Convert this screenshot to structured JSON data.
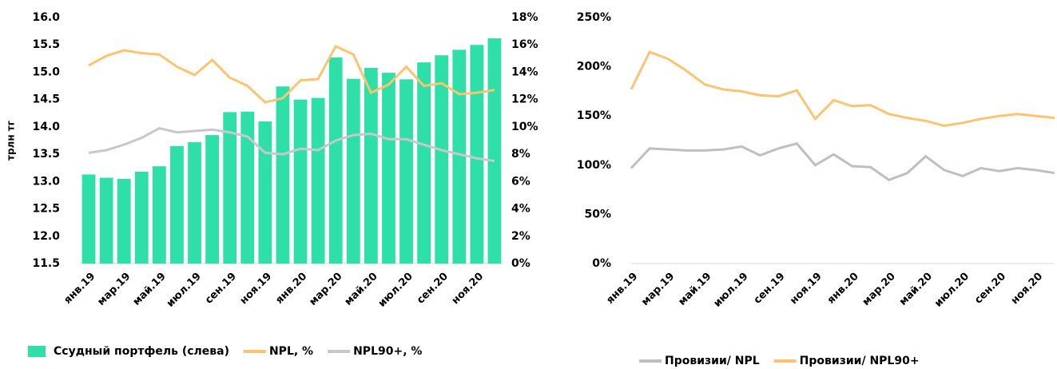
{
  "chart_data": [
    {
      "type": "bar",
      "ylabel": "трлн тг",
      "categories": [
        "янв.19",
        null,
        "мар.19",
        null,
        "май.19",
        null,
        "июл.19",
        null,
        "сен.19",
        null,
        "ноя.19",
        null,
        "янв.20",
        null,
        "мар.20",
        null,
        "май.20",
        null,
        "июл.20",
        null,
        "сен.20",
        null,
        "ноя.20",
        null
      ],
      "series": [
        {
          "name": "Ссудный портфель (слева)",
          "type": "bar",
          "color": "#2edfa8",
          "values": [
            13.13,
            13.07,
            13.05,
            13.18,
            13.28,
            13.65,
            13.72,
            13.85,
            14.27,
            14.28,
            14.1,
            14.74,
            14.5,
            14.53,
            15.27,
            14.88,
            15.08,
            14.99,
            14.87,
            15.18,
            15.31,
            15.41,
            15.5,
            15.62
          ]
        },
        {
          "name": "NPL, %",
          "type": "line",
          "axis": "y2",
          "color": "#fcc470",
          "values": [
            14.5,
            15.2,
            15.6,
            15.4,
            15.3,
            14.4,
            13.8,
            14.9,
            13.6,
            13.0,
            11.8,
            12.1,
            13.4,
            13.5,
            15.9,
            15.3,
            12.5,
            13.1,
            14.4,
            13.0,
            13.2,
            12.4,
            12.5,
            12.7
          ]
        },
        {
          "name": "NPL90+, %",
          "type": "line",
          "axis": "y2",
          "color": "#c8c8c8",
          "values": [
            8.1,
            8.3,
            8.7,
            9.2,
            9.9,
            9.6,
            9.7,
            9.8,
            9.6,
            9.3,
            8.1,
            8.0,
            8.4,
            8.3,
            9.0,
            9.4,
            9.5,
            9.1,
            9.1,
            8.7,
            8.3,
            8.0,
            7.7,
            7.5
          ]
        }
      ],
      "ylim": [
        11.5,
        16.0
      ],
      "yticks": [
        {
          "value": 11.5,
          "label": "11.5"
        },
        {
          "value": 12,
          "label": "12.0"
        },
        {
          "value": 12.5,
          "label": "12.5"
        },
        {
          "value": 13,
          "label": "13.0"
        },
        {
          "value": 13.5,
          "label": "13.5"
        },
        {
          "value": 14,
          "label": "14.0"
        },
        {
          "value": 14.5,
          "label": "14.5"
        },
        {
          "value": 15,
          "label": "15.0"
        },
        {
          "value": 15.5,
          "label": "15.5"
        },
        {
          "value": 16,
          "label": "16.0"
        }
      ],
      "y2lim": [
        0,
        18
      ],
      "y2ticks": [
        {
          "value": 0,
          "label": "0%"
        },
        {
          "value": 2,
          "label": "2%"
        },
        {
          "value": 4,
          "label": "4%"
        },
        {
          "value": 6,
          "label": "6%"
        },
        {
          "value": 8,
          "label": "8%"
        },
        {
          "value": 10,
          "label": "10%"
        },
        {
          "value": 12,
          "label": "12%"
        },
        {
          "value": 14,
          "label": "14%"
        },
        {
          "value": 16,
          "label": "16%"
        },
        {
          "value": 18,
          "label": "18%"
        }
      ]
    },
    {
      "type": "line",
      "categories": [
        "янв.19",
        null,
        "мар.19",
        null,
        "май.19",
        null,
        "июл.19",
        null,
        "сен.19",
        null,
        "ноя.19",
        null,
        "янв.20",
        null,
        "мар.20",
        null,
        "май.20",
        null,
        "июл.20",
        null,
        "сен.20",
        null,
        "ноя.20",
        null
      ],
      "series": [
        {
          "name": "Провизии/ NPL",
          "color": "#bfbfbf",
          "values": [
            97,
            117,
            116,
            115,
            115,
            116,
            119,
            110,
            117,
            122,
            100,
            111,
            99,
            98,
            85,
            92,
            109,
            95,
            89,
            97,
            94,
            97,
            95,
            92
          ]
        },
        {
          "name": "Провизии/ NPL90+",
          "color": "#fcc470",
          "values": [
            177,
            215,
            208,
            196,
            182,
            177,
            175,
            171,
            170,
            176,
            147,
            166,
            160,
            161,
            152,
            148,
            145,
            140,
            143,
            147,
            150,
            152,
            150,
            148
          ]
        }
      ],
      "ylim": [
        0,
        250
      ],
      "yticks": [
        {
          "value": 0,
          "label": "0%"
        },
        {
          "value": 50,
          "label": "50%"
        },
        {
          "value": 100,
          "label": "100%"
        },
        {
          "value": 150,
          "label": "150%"
        },
        {
          "value": 200,
          "label": "200%"
        },
        {
          "value": 250,
          "label": "250%"
        }
      ]
    }
  ]
}
